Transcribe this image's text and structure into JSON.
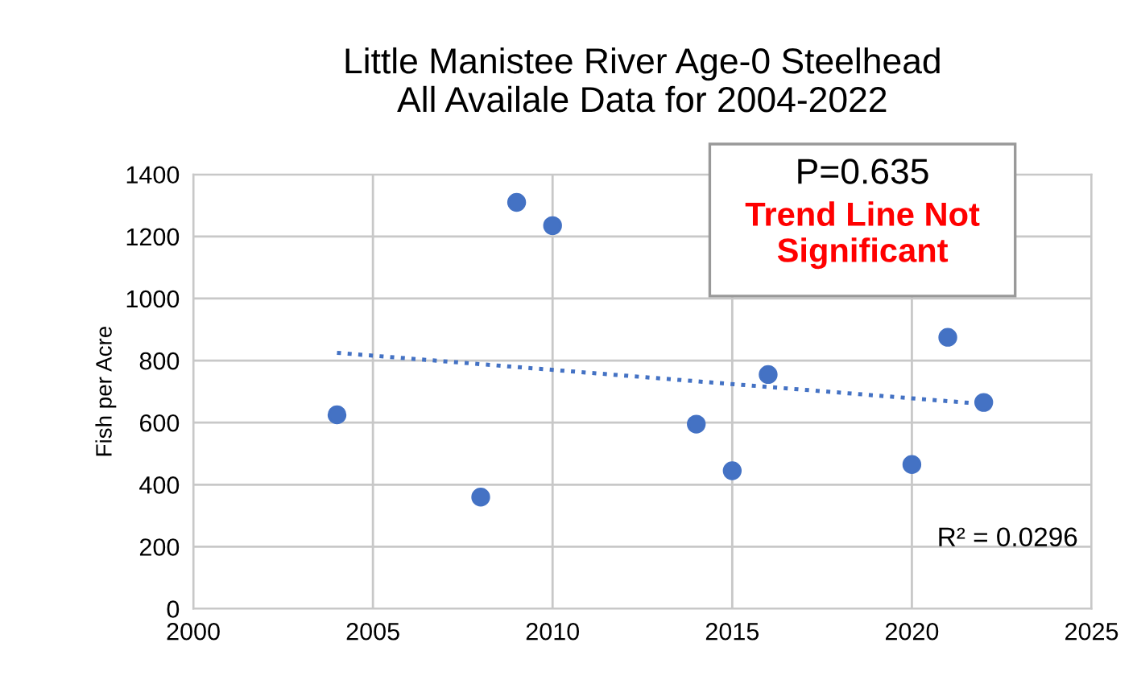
{
  "chart_data": {
    "type": "scatter",
    "title": "Little Manistee River Age-0 Steelhead\nAll Availale Data for 2004-2022",
    "ylabel": "Fish per Acre",
    "x": [
      2004,
      2008,
      2009,
      2010,
      2014,
      2015,
      2016,
      2020,
      2021,
      2022
    ],
    "series": [
      {
        "color": "#4472c4",
        "values": [
          625,
          360,
          1310,
          1235,
          595,
          445,
          755,
          465,
          875,
          665
        ],
        "marker": "circle"
      },
      {
        "type": "line",
        "color": "#4472c4",
        "x": [
          2004,
          2022
        ],
        "values": [
          825,
          660
        ],
        "line_style": "dotted",
        "marker": "none"
      }
    ],
    "annotations": [
      "P=0.635",
      "Trend Line Not Significant",
      "R² = 0.0296"
    ],
    "xlim": [
      2000,
      2025
    ],
    "xticks": [
      2000,
      2005,
      2010,
      2015,
      2020,
      2025
    ],
    "ylim": [
      0,
      1400
    ],
    "yticks": [
      0,
      200,
      400,
      600,
      800,
      1000,
      1200,
      1400
    ],
    "grid": true,
    "legend": false
  }
}
